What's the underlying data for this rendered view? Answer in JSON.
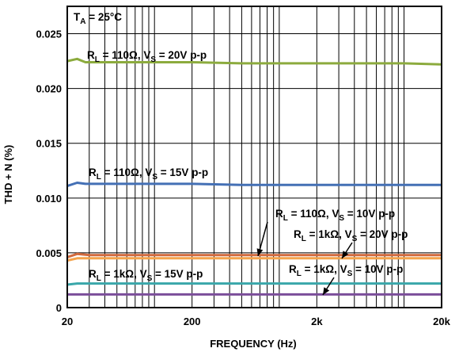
{
  "chart_data": {
    "type": "line",
    "xlabel": "FREQUENCY (Hz)",
    "ylabel": "THD + N (%)",
    "x_scale": "log",
    "xlim": [
      20,
      20000
    ],
    "ylim": [
      0,
      0.0275
    ],
    "grid": true,
    "x_ticks": [
      {
        "value": 20,
        "label": "20"
      },
      {
        "value": 200,
        "label": "200"
      },
      {
        "value": 2000,
        "label": "2k"
      },
      {
        "value": 20000,
        "label": "20k"
      }
    ],
    "y_ticks": [
      {
        "value": 0,
        "label": "0"
      },
      {
        "value": 0.005,
        "label": "0.005"
      },
      {
        "value": 0.01,
        "label": "0.010"
      },
      {
        "value": 0.015,
        "label": "0.015"
      },
      {
        "value": 0.02,
        "label": "0.020"
      },
      {
        "value": 0.025,
        "label": "0.025"
      }
    ],
    "condition_label": {
      "main": "T",
      "sub": "A",
      "rest": " = 25°C"
    },
    "series": [
      {
        "color": "#8cab3e",
        "label": {
          "p1": "R",
          "s1": "L",
          "p2": " = 110Ω, V",
          "s2": "S",
          "p3": " = 20V p-p"
        },
        "x": [
          20,
          24,
          28,
          40,
          60,
          100,
          200,
          500,
          1000,
          2000,
          5000,
          10000,
          20000
        ],
        "y": [
          0.0225,
          0.0227,
          0.0224,
          0.0224,
          0.0224,
          0.0224,
          0.0224,
          0.0223,
          0.0223,
          0.0223,
          0.0223,
          0.0223,
          0.0222
        ]
      },
      {
        "color": "#4470b5",
        "label": {
          "p1": "R",
          "s1": "L",
          "p2": " = 110Ω, V",
          "s2": "S",
          "p3": " = 15V p-p"
        },
        "x": [
          20,
          24,
          28,
          40,
          60,
          100,
          200,
          500,
          1000,
          2000,
          5000,
          10000,
          20000
        ],
        "y": [
          0.0111,
          0.0114,
          0.0113,
          0.0113,
          0.0113,
          0.0113,
          0.0113,
          0.0112,
          0.0112,
          0.0112,
          0.0112,
          0.0112,
          0.0112
        ]
      },
      {
        "color": "#d26a3d",
        "label": {
          "p1": "R",
          "s1": "L",
          "p2": " = 110Ω, V",
          "s2": "S",
          "p3": " = 10V p-p"
        },
        "x": [
          20,
          24,
          30,
          50,
          100,
          200,
          500,
          1000,
          2000,
          5000,
          10000,
          20000
        ],
        "y": [
          0.0046,
          0.0049,
          0.0048,
          0.0048,
          0.0048,
          0.0048,
          0.0048,
          0.0048,
          0.0048,
          0.0048,
          0.0048,
          0.0048
        ]
      },
      {
        "color": "#f4a34c",
        "label": {
          "p1": "R",
          "s1": "L",
          "p2": " = 1kΩ, V",
          "s2": "S",
          "p3": " = 20V p-p"
        },
        "x": [
          20,
          24,
          30,
          50,
          100,
          200,
          500,
          1000,
          2000,
          5000,
          10000,
          20000
        ],
        "y": [
          0.0043,
          0.0045,
          0.0045,
          0.0045,
          0.0045,
          0.0045,
          0.0045,
          0.0045,
          0.0045,
          0.0045,
          0.0045,
          0.0045
        ]
      },
      {
        "color": "#3aa7aa",
        "label": {
          "p1": "R",
          "s1": "L",
          "p2": " = 1kΩ, V",
          "s2": "S",
          "p3": " = 15V p-p"
        },
        "x": [
          20,
          24,
          30,
          50,
          100,
          200,
          500,
          1000,
          2000,
          5000,
          10000,
          20000
        ],
        "y": [
          0.0021,
          0.0022,
          0.0022,
          0.0022,
          0.0022,
          0.0022,
          0.0022,
          0.0022,
          0.0022,
          0.0022,
          0.0022,
          0.0022
        ]
      },
      {
        "color": "#7b4e9a",
        "label": {
          "p1": "R",
          "s1": "L",
          "p2": " = 1kΩ, V",
          "s2": "S",
          "p3": " = 10V p-p"
        },
        "x": [
          20,
          30,
          50,
          100,
          200,
          500,
          1000,
          2000,
          5000,
          10000,
          20000
        ],
        "y": [
          0.0012,
          0.0012,
          0.0012,
          0.0012,
          0.0012,
          0.0012,
          0.0012,
          0.0012,
          0.0012,
          0.0012,
          0.0012
        ]
      }
    ]
  }
}
